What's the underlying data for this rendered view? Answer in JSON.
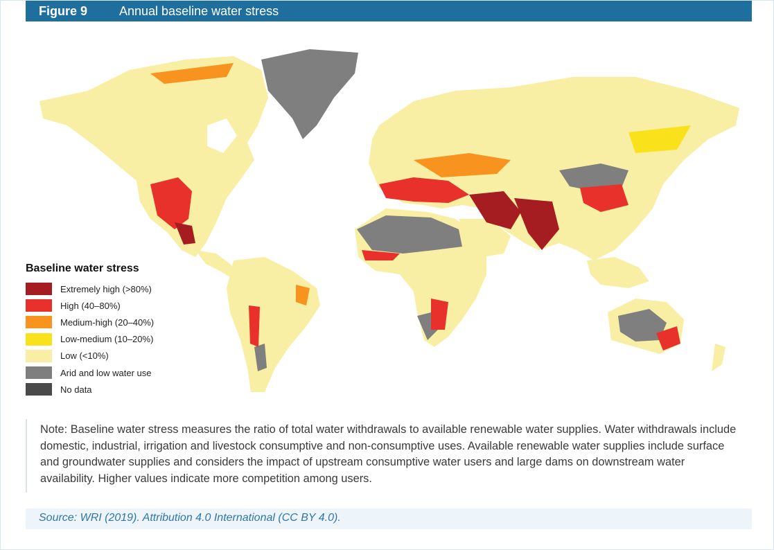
{
  "figure": {
    "label": "Figure 9",
    "title": "Annual baseline water stress"
  },
  "legend": {
    "title": "Baseline water stress",
    "items": [
      {
        "label": "Extremely high (>80%)",
        "color": "#a51d20"
      },
      {
        "label": "High (40–80%)",
        "color": "#e8312b"
      },
      {
        "label": "Medium-high (20–40%)",
        "color": "#f7931e"
      },
      {
        "label": "Low-medium (10–20%)",
        "color": "#f9e21b"
      },
      {
        "label": "Low (<10%)",
        "color": "#f8eea4"
      },
      {
        "label": "Arid and low water use",
        "color": "#7f7f7f"
      },
      {
        "label": "No data",
        "color": "#4a4a4a"
      }
    ]
  },
  "note": "Note: Baseline water stress measures the ratio of total water withdrawals to available renewable water supplies. Water withdrawals include domestic, industrial, irrigation and livestock consumptive and non-consumptive uses. Available renewable water supplies include surface and groundwater supplies and considers the impact of upstream consumptive water users and large dams on downstream water availability. Higher values indicate more competition among users.",
  "source": "Source: WRI (2019). Attribution 4.0 International (CC BY 4.0).",
  "colors": {
    "header_bg": "#1e6f9e",
    "land_low": "#f8eea4",
    "arid": "#7f7f7f"
  }
}
